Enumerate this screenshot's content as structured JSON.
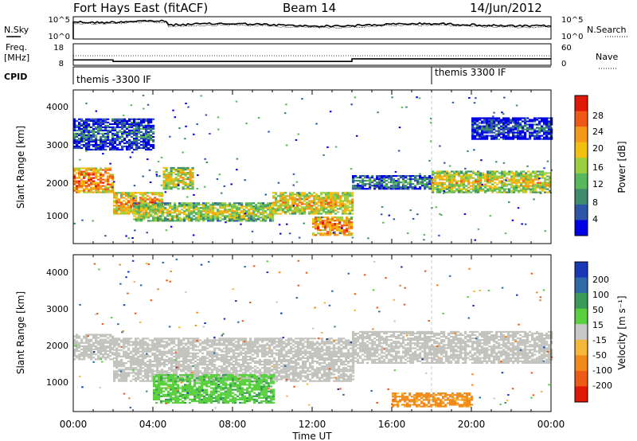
{
  "header": {
    "station": "Fort Hays East (fitACF)",
    "beam": "Beam 14",
    "date": "14/Jun/2012"
  },
  "top_panels": {
    "nsky_label": "N.Sky",
    "nsearch_label": "N.Search",
    "noise_ticks_left": [
      "10^5",
      "10^0"
    ],
    "noise_ticks_right": [
      "10^5",
      "10^0"
    ],
    "freq_label_line1": "Freq.",
    "freq_label_line2": "[MHz]",
    "freq_ticks": [
      "18",
      "8"
    ],
    "nave_label": "Nave",
    "nave_ticks": [
      "60",
      "0"
    ],
    "cpid_label": "CPID",
    "cpid_segments": [
      {
        "label": "themis -3300 IF",
        "start_hour": 0,
        "end_hour": 18
      },
      {
        "label": "themis 3300 IF",
        "start_hour": 18,
        "end_hour": 24
      }
    ]
  },
  "power_panel": {
    "ylabel": "Slant Range [km]",
    "yticks": [
      "4000",
      "3000",
      "2000",
      "1000"
    ],
    "colorbar_label": "Power [dB]",
    "colorbar_ticks": [
      "28",
      "24",
      "20",
      "16",
      "12",
      "8",
      "4"
    ],
    "colors": [
      "#0000e6",
      "#2f55a8",
      "#3f8c6e",
      "#58b85c",
      "#9ad040",
      "#f2c010",
      "#f59a18",
      "#f05818",
      "#e01808"
    ]
  },
  "velocity_panel": {
    "ylabel": "Slant Range [km]",
    "yticks": [
      "4000",
      "3000",
      "2000",
      "1000"
    ],
    "colorbar_label": "Velocity [m s⁻¹]",
    "colorbar_ticks": [
      "200",
      "100",
      "50",
      "15",
      "-15",
      "-50",
      "-100",
      "-200"
    ],
    "colors": [
      "#1838b8",
      "#2f6aa8",
      "#3a9b56",
      "#5ad040",
      "#c8c8c8",
      "#f5b83a",
      "#f08a1a",
      "#ee5a18",
      "#e01808"
    ],
    "ground_scatter_color": "#c3c3be"
  },
  "x_axis": {
    "xlabel": "Time UT",
    "xticks": [
      "00:00",
      "04:00",
      "08:00",
      "12:00",
      "16:00",
      "20:00",
      "00:00"
    ]
  },
  "chart_data": {
    "type": "heatmap",
    "title": "Fort Hays East (fitACF) Beam 14 14/Jun/2012",
    "xlabel": "Time UT",
    "ylabel": "Slant Range [km]",
    "x_range_hours": [
      0,
      24
    ],
    "y_range_km": [
      180,
      4500
    ],
    "frequency_mhz_steps": [
      {
        "start_hour": 0,
        "end_hour": 2,
        "value": 10.5
      },
      {
        "start_hour": 2,
        "end_hour": 14,
        "value": 9.8
      },
      {
        "start_hour": 14,
        "end_hour": 24,
        "value": 11.0
      }
    ],
    "power_bands": [
      {
        "t0": 0,
        "t1": 2,
        "r0": 1600,
        "r1": 2300,
        "level": 26
      },
      {
        "t0": 2,
        "t1": 4.5,
        "r0": 1000,
        "r1": 1600,
        "level": 24
      },
      {
        "t0": 4.5,
        "t1": 6,
        "r0": 1700,
        "r1": 2300,
        "level": 20
      },
      {
        "t0": 3,
        "t1": 10,
        "r0": 800,
        "r1": 1300,
        "level": 18
      },
      {
        "t0": 10,
        "t1": 14,
        "r0": 1000,
        "r1": 1600,
        "level": 22
      },
      {
        "t0": 12,
        "t1": 14,
        "r0": 400,
        "r1": 900,
        "level": 26
      },
      {
        "t0": 14,
        "t1": 18,
        "r0": 1700,
        "r1": 2100,
        "level": 10
      },
      {
        "t0": 18,
        "t1": 24,
        "r0": 1600,
        "r1": 2200,
        "level": 20
      },
      {
        "t0": 0,
        "t1": 4,
        "r0": 2800,
        "r1": 3700,
        "level": 8
      },
      {
        "t0": 20,
        "t1": 24,
        "r0": 3100,
        "r1": 3700,
        "level": 6
      }
    ],
    "velocity_bands": [
      {
        "t0": 0,
        "t1": 2,
        "r0": 1600,
        "r1": 2300,
        "velocity": 0,
        "ground_scatter": true
      },
      {
        "t0": 2,
        "t1": 14,
        "r0": 1000,
        "r1": 2200,
        "velocity": 0,
        "ground_scatter": true
      },
      {
        "t0": 4,
        "t1": 10,
        "r0": 400,
        "r1": 1200,
        "velocity": 40
      },
      {
        "t0": 14,
        "t1": 24,
        "r0": 1500,
        "r1": 2400,
        "velocity": 0,
        "ground_scatter": true
      },
      {
        "t0": 16,
        "t1": 20,
        "r0": 300,
        "r1": 700,
        "velocity": -60
      }
    ]
  }
}
